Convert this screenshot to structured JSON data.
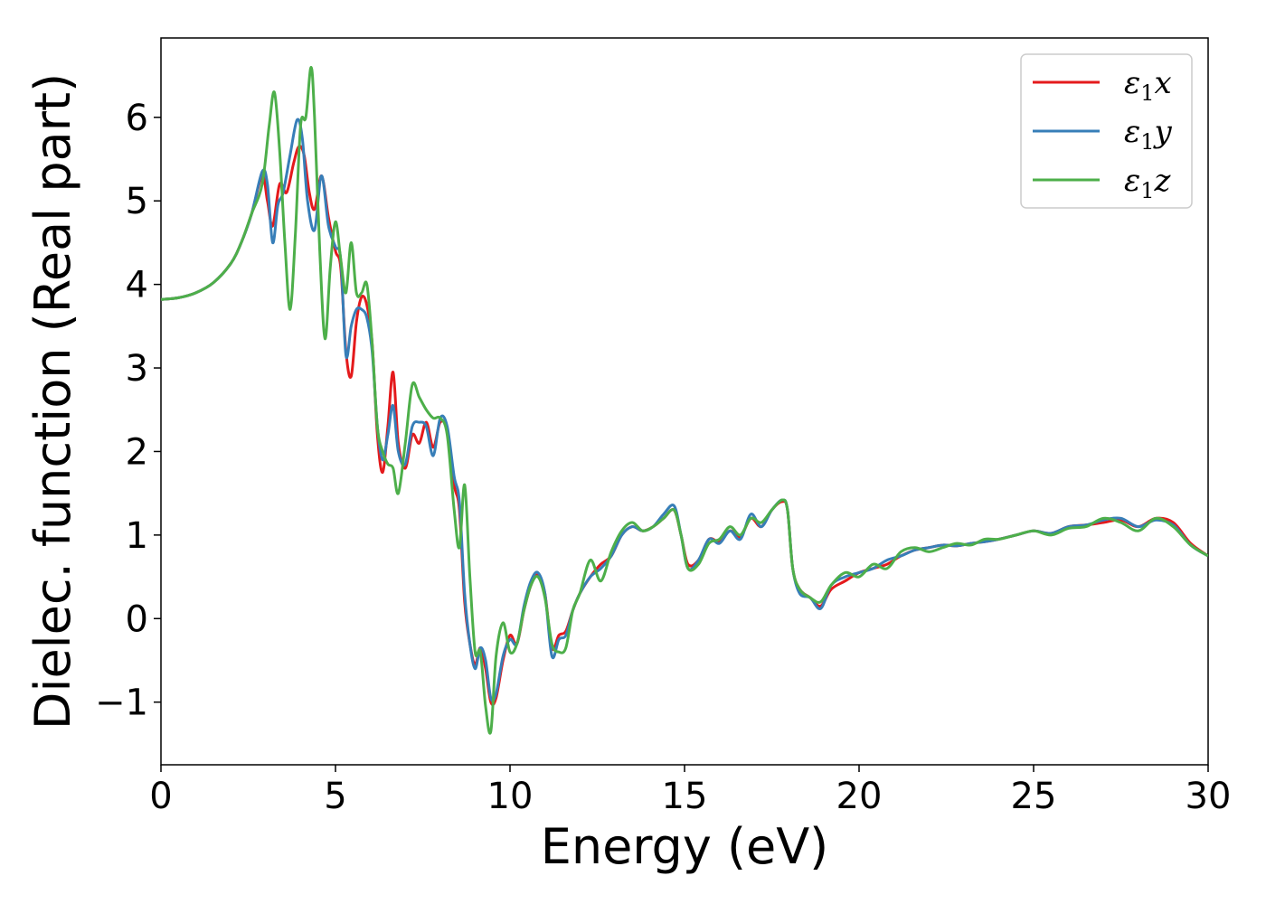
{
  "chart_data": {
    "type": "line",
    "title": "",
    "xlabel": "Energy (eV)",
    "ylabel": "Dielec. function (Real part)",
    "xlim": [
      0,
      30
    ],
    "ylim": [
      -1.75,
      6.95
    ],
    "xticks": [
      0,
      5,
      10,
      15,
      20,
      25,
      30
    ],
    "xtick_labels": [
      "0",
      "5",
      "10",
      "15",
      "20",
      "25",
      "30"
    ],
    "yticks": [
      -1,
      0,
      1,
      2,
      3,
      4,
      5,
      6
    ],
    "ytick_labels": [
      "−1",
      "0",
      "1",
      "2",
      "3",
      "4",
      "5",
      "6"
    ],
    "grid": false,
    "legend_position": "top-right",
    "series": [
      {
        "name": "ε₁x",
        "name_base": "ε",
        "name_sub": "1",
        "name_tail": "x",
        "color": "#e41a1c",
        "x": [
          0,
          0.5,
          1,
          1.5,
          2,
          2.3,
          2.6,
          2.9,
          3.05,
          3.2,
          3.4,
          3.6,
          3.8,
          3.95,
          4.1,
          4.25,
          4.4,
          4.6,
          4.8,
          5.0,
          5.15,
          5.3,
          5.45,
          5.6,
          5.75,
          5.9,
          6.05,
          6.2,
          6.35,
          6.5,
          6.65,
          6.8,
          7.0,
          7.2,
          7.4,
          7.6,
          7.8,
          8.0,
          8.2,
          8.4,
          8.55,
          8.7,
          8.85,
          9.0,
          9.15,
          9.3,
          9.45,
          9.6,
          9.8,
          10.0,
          10.2,
          10.4,
          10.6,
          10.8,
          11.0,
          11.2,
          11.4,
          11.6,
          11.8,
          12.0,
          12.3,
          12.6,
          12.9,
          13.2,
          13.5,
          13.8,
          14.1,
          14.4,
          14.7,
          14.9,
          15.1,
          15.4,
          15.7,
          16.0,
          16.3,
          16.6,
          16.9,
          17.2,
          17.5,
          17.8,
          17.95,
          18.1,
          18.3,
          18.6,
          18.9,
          19.2,
          19.6,
          20.0,
          20.4,
          20.8,
          21.2,
          21.6,
          22.0,
          22.4,
          22.8,
          23.2,
          23.6,
          24.0,
          24.5,
          25.0,
          25.5,
          26.0,
          26.5,
          27.0,
          27.5,
          28.0,
          28.5,
          29.0,
          29.5,
          30.0
        ],
        "y": [
          3.82,
          3.84,
          3.9,
          4.02,
          4.25,
          4.5,
          4.85,
          5.3,
          5.0,
          4.7,
          5.2,
          5.1,
          5.45,
          5.65,
          5.55,
          5.1,
          4.9,
          5.3,
          4.8,
          4.4,
          4.2,
          3.2,
          2.9,
          3.55,
          3.85,
          3.75,
          3.3,
          2.2,
          1.75,
          2.3,
          2.95,
          2.1,
          1.8,
          2.2,
          2.1,
          2.35,
          2.05,
          2.35,
          2.25,
          1.6,
          1.3,
          0.2,
          -0.3,
          -0.55,
          -0.35,
          -0.6,
          -1.0,
          -0.95,
          -0.5,
          -0.2,
          -0.3,
          0.1,
          0.4,
          0.52,
          0.3,
          -0.35,
          -0.2,
          -0.15,
          0.1,
          0.3,
          0.5,
          0.65,
          0.75,
          1.0,
          1.1,
          1.05,
          1.1,
          1.2,
          1.3,
          1.0,
          0.65,
          0.7,
          0.95,
          0.92,
          1.05,
          0.98,
          1.2,
          1.1,
          1.3,
          1.4,
          1.3,
          0.6,
          0.35,
          0.25,
          0.15,
          0.35,
          0.45,
          0.55,
          0.6,
          0.65,
          0.75,
          0.82,
          0.85,
          0.88,
          0.87,
          0.9,
          0.92,
          0.95,
          1.0,
          1.05,
          1.02,
          1.1,
          1.12,
          1.15,
          1.18,
          1.1,
          1.2,
          1.15,
          0.9,
          0.75
        ]
      },
      {
        "name": "ε₁y",
        "name_base": "ε",
        "name_sub": "1",
        "name_tail": "y",
        "color": "#377eb8",
        "x": [
          0,
          0.5,
          1,
          1.5,
          2,
          2.3,
          2.6,
          2.9,
          3.05,
          3.2,
          3.35,
          3.5,
          3.7,
          3.9,
          4.05,
          4.2,
          4.4,
          4.6,
          4.8,
          5.0,
          5.15,
          5.3,
          5.45,
          5.6,
          5.75,
          5.9,
          6.05,
          6.2,
          6.35,
          6.5,
          6.65,
          6.8,
          7.0,
          7.2,
          7.4,
          7.6,
          7.8,
          8.0,
          8.2,
          8.4,
          8.55,
          8.7,
          8.85,
          9.0,
          9.15,
          9.3,
          9.45,
          9.6,
          9.8,
          10.0,
          10.2,
          10.4,
          10.6,
          10.8,
          11.0,
          11.2,
          11.4,
          11.6,
          11.8,
          12.0,
          12.3,
          12.6,
          12.9,
          13.2,
          13.5,
          13.8,
          14.1,
          14.4,
          14.7,
          14.9,
          15.1,
          15.4,
          15.7,
          16.0,
          16.3,
          16.6,
          16.9,
          17.2,
          17.5,
          17.8,
          17.95,
          18.1,
          18.3,
          18.6,
          18.9,
          19.2,
          19.6,
          20.0,
          20.4,
          20.8,
          21.2,
          21.6,
          22.0,
          22.4,
          22.8,
          23.2,
          23.6,
          24.0,
          24.5,
          25.0,
          25.5,
          26.0,
          26.5,
          27.0,
          27.5,
          28.0,
          28.5,
          29.0,
          29.5,
          30.0
        ],
        "y": [
          3.82,
          3.84,
          3.9,
          4.02,
          4.25,
          4.5,
          4.85,
          5.35,
          5.2,
          4.5,
          4.95,
          5.1,
          5.55,
          5.97,
          5.75,
          5.0,
          4.65,
          5.3,
          4.7,
          4.45,
          4.3,
          3.15,
          3.5,
          3.7,
          3.7,
          3.6,
          3.2,
          2.3,
          1.9,
          2.2,
          2.55,
          2.0,
          1.85,
          2.3,
          2.35,
          2.3,
          1.95,
          2.4,
          2.3,
          1.7,
          1.4,
          0.3,
          -0.3,
          -0.6,
          -0.35,
          -0.5,
          -0.95,
          -0.9,
          -0.45,
          -0.25,
          -0.3,
          0.15,
          0.45,
          0.55,
          0.3,
          -0.45,
          -0.25,
          -0.2,
          0.1,
          0.3,
          0.5,
          0.6,
          0.75,
          1.0,
          1.1,
          1.05,
          1.1,
          1.25,
          1.35,
          1.0,
          0.6,
          0.7,
          0.95,
          0.9,
          1.05,
          0.95,
          1.25,
          1.1,
          1.3,
          1.42,
          1.3,
          0.6,
          0.3,
          0.25,
          0.12,
          0.4,
          0.5,
          0.55,
          0.6,
          0.7,
          0.75,
          0.82,
          0.85,
          0.88,
          0.87,
          0.9,
          0.92,
          0.95,
          1.0,
          1.05,
          1.02,
          1.1,
          1.12,
          1.18,
          1.2,
          1.1,
          1.18,
          1.12,
          0.88,
          0.75
        ]
      },
      {
        "name": "ε₁z",
        "name_base": "ε",
        "name_sub": "1",
        "name_tail": "z",
        "color": "#4daf4a",
        "x": [
          0,
          0.5,
          1,
          1.5,
          2,
          2.3,
          2.6,
          2.9,
          3.1,
          3.25,
          3.4,
          3.55,
          3.7,
          3.85,
          4.0,
          4.15,
          4.3,
          4.4,
          4.55,
          4.7,
          4.85,
          5.0,
          5.15,
          5.3,
          5.45,
          5.6,
          5.75,
          5.9,
          6.05,
          6.2,
          6.35,
          6.5,
          6.65,
          6.8,
          7.0,
          7.2,
          7.4,
          7.6,
          7.8,
          8.0,
          8.2,
          8.4,
          8.55,
          8.7,
          8.85,
          9.0,
          9.15,
          9.3,
          9.45,
          9.6,
          9.8,
          10.0,
          10.2,
          10.4,
          10.6,
          10.8,
          11.0,
          11.2,
          11.4,
          11.6,
          11.8,
          12.0,
          12.3,
          12.6,
          12.9,
          13.2,
          13.5,
          13.8,
          14.1,
          14.4,
          14.7,
          14.9,
          15.1,
          15.4,
          15.7,
          16.0,
          16.3,
          16.6,
          16.9,
          17.2,
          17.5,
          17.8,
          17.95,
          18.1,
          18.3,
          18.6,
          18.9,
          19.2,
          19.6,
          20.0,
          20.4,
          20.8,
          21.2,
          21.6,
          22.0,
          22.4,
          22.8,
          23.2,
          23.6,
          24.0,
          24.5,
          25.0,
          25.5,
          26.0,
          26.5,
          27.0,
          27.5,
          28.0,
          28.5,
          29.0,
          29.5,
          30.0
        ],
        "y": [
          3.82,
          3.84,
          3.9,
          4.02,
          4.25,
          4.5,
          4.85,
          5.2,
          5.9,
          6.3,
          5.6,
          4.5,
          3.7,
          4.6,
          5.9,
          6.0,
          6.6,
          6.0,
          4.4,
          3.35,
          4.2,
          4.75,
          4.3,
          3.9,
          4.5,
          3.9,
          3.9,
          4.0,
          3.3,
          2.3,
          2.0,
          1.85,
          1.8,
          1.5,
          2.1,
          2.8,
          2.65,
          2.5,
          2.4,
          2.4,
          2.2,
          1.3,
          0.85,
          1.6,
          0.5,
          -0.4,
          -0.4,
          -1.05,
          -1.35,
          -0.45,
          -0.05,
          -0.4,
          -0.3,
          0.1,
          0.4,
          0.5,
          0.25,
          -0.3,
          -0.4,
          -0.35,
          0.1,
          0.3,
          0.7,
          0.45,
          0.8,
          1.05,
          1.15,
          1.05,
          1.1,
          1.2,
          1.3,
          1.0,
          0.6,
          0.65,
          0.9,
          0.95,
          1.1,
          1.0,
          1.2,
          1.15,
          1.3,
          1.42,
          1.3,
          0.6,
          0.35,
          0.25,
          0.2,
          0.4,
          0.55,
          0.5,
          0.65,
          0.6,
          0.8,
          0.85,
          0.8,
          0.85,
          0.9,
          0.88,
          0.95,
          0.95,
          1.0,
          1.05,
          1.0,
          1.08,
          1.1,
          1.2,
          1.15,
          1.05,
          1.2,
          1.1,
          0.88,
          0.75
        ]
      }
    ]
  }
}
